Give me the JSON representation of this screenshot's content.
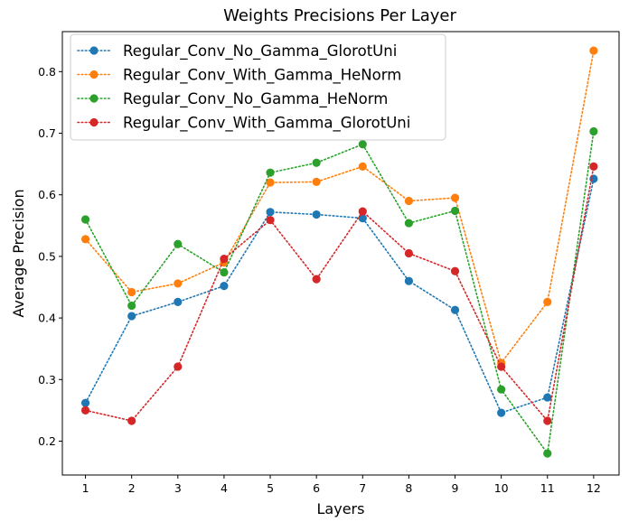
{
  "chart_data": {
    "type": "line",
    "title": "Weights Precisions Per Layer",
    "xlabel": "Layers",
    "ylabel": "Average Precision",
    "x": [
      1,
      2,
      3,
      4,
      5,
      6,
      7,
      8,
      9,
      10,
      11,
      12
    ],
    "xlim": [
      0.5,
      12.55
    ],
    "ylim": [
      0.145,
      0.865
    ],
    "yticks": [
      0.2,
      0.3,
      0.4,
      0.5,
      0.6,
      0.7,
      0.8
    ],
    "ytick_labels": [
      "0.2",
      "0.3",
      "0.4",
      "0.5",
      "0.6",
      "0.7",
      "0.8"
    ],
    "xtick_labels": [
      "1",
      "2",
      "3",
      "4",
      "5",
      "6",
      "7",
      "8",
      "9",
      "10",
      "11",
      "12"
    ],
    "grid": false,
    "legend_position": "top-left",
    "series": [
      {
        "name": "Regular_Conv_No_Gamma_GlorotUni",
        "color": "#1f77b4",
        "values": [
          0.262,
          0.403,
          0.426,
          0.452,
          0.572,
          0.568,
          0.562,
          0.46,
          0.413,
          0.246,
          0.271,
          0.626
        ]
      },
      {
        "name": "Regular_Conv_With_Gamma_HeNorm",
        "color": "#ff7f0e",
        "values": [
          0.528,
          0.442,
          0.456,
          0.49,
          0.62,
          0.621,
          0.646,
          0.59,
          0.595,
          0.327,
          0.426,
          0.834
        ]
      },
      {
        "name": "Regular_Conv_No_Gamma_HeNorm",
        "color": "#2ca02c",
        "values": [
          0.56,
          0.42,
          0.52,
          0.474,
          0.636,
          0.652,
          0.682,
          0.554,
          0.574,
          0.284,
          0.18,
          0.703
        ]
      },
      {
        "name": "Regular_Conv_With_Gamma_GlorotUni",
        "color": "#d62728",
        "values": [
          0.25,
          0.233,
          0.321,
          0.496,
          0.559,
          0.463,
          0.573,
          0.505,
          0.476,
          0.321,
          0.233,
          0.646
        ]
      }
    ]
  }
}
